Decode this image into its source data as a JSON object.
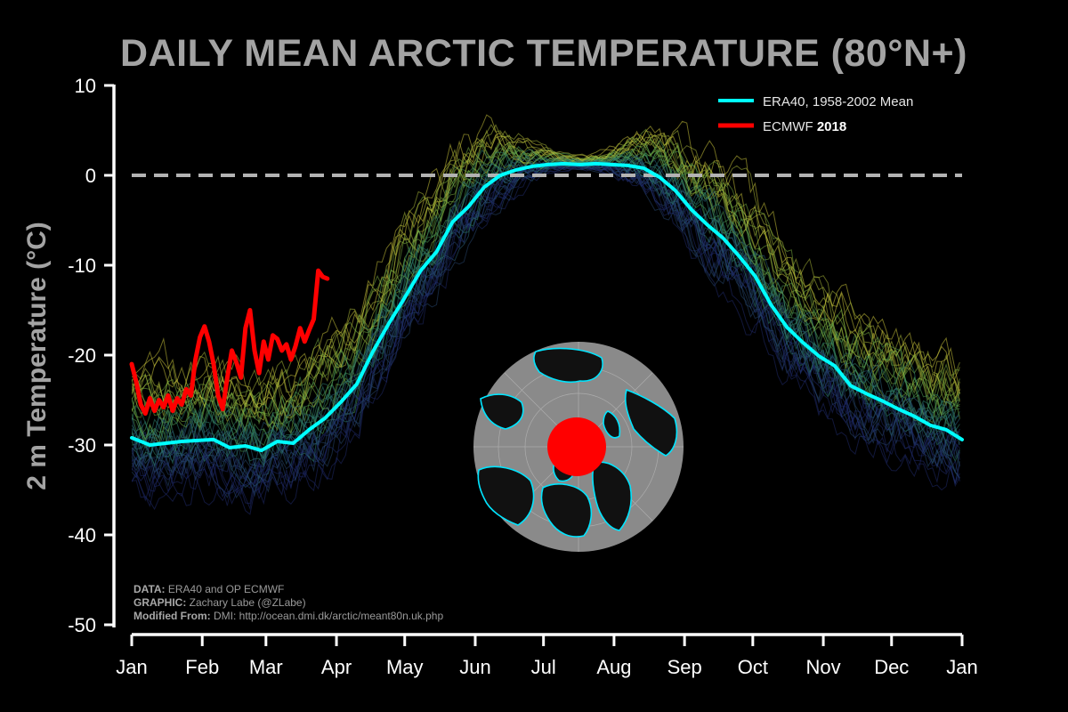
{
  "chart_data": {
    "type": "line",
    "title": "DAILY MEAN ARCTIC TEMPERATURE (80°N+)",
    "ylabel": "2 m Temperature (°C)",
    "xlabel": "",
    "ylim": [
      -50,
      10
    ],
    "yticks": [
      10,
      0,
      -10,
      -20,
      -30,
      -40,
      -50
    ],
    "months": [
      "Jan",
      "Feb",
      "Mar",
      "Apr",
      "May",
      "Jun",
      "Jul",
      "Aug",
      "Sep",
      "Oct",
      "Nov",
      "Dec",
      "Jan"
    ],
    "zero_line": 0,
    "series": [
      {
        "name": "ERA40, 1958-2002 Mean",
        "color": "#00ffff",
        "x": [
          0,
          8,
          15,
          22,
          29,
          36,
          43,
          50,
          57,
          64,
          71,
          78,
          85,
          92,
          99,
          106,
          113,
          120,
          127,
          134,
          141,
          148,
          155,
          162,
          169,
          176,
          183,
          190,
          197,
          204,
          211,
          218,
          225,
          232,
          239,
          246,
          253,
          260,
          267,
          274,
          281,
          288,
          295,
          302,
          309,
          316,
          323,
          330,
          337,
          344,
          351,
          358,
          365
        ],
        "values": [
          -29.2,
          -30.0,
          -29.8,
          -29.6,
          -29.5,
          -29.4,
          -30.3,
          -30.1,
          -30.6,
          -29.6,
          -29.8,
          -28.3,
          -27.0,
          -25.2,
          -23.2,
          -19.6,
          -16.5,
          -13.6,
          -10.6,
          -8.5,
          -5.2,
          -3.5,
          -1.3,
          0.0,
          0.6,
          1.0,
          1.2,
          1.3,
          1.2,
          1.3,
          1.2,
          1.1,
          0.8,
          -0.2,
          -1.7,
          -3.8,
          -5.5,
          -7.0,
          -9.0,
          -11.2,
          -14.4,
          -16.9,
          -18.6,
          -20.1,
          -21.2,
          -23.4,
          -24.3,
          -25.1,
          -26.0,
          -26.8,
          -27.8,
          -28.3,
          -29.4
        ]
      },
      {
        "name": "ECMWF 2018",
        "label_prefix": "ECMWF ",
        "label_bold": "2018",
        "color": "#ff0000",
        "x": [
          0,
          2,
          4,
          6,
          8,
          10,
          12,
          14,
          16,
          18,
          20,
          22,
          24,
          26,
          28,
          30,
          32,
          34,
          36,
          38,
          40,
          42,
          44,
          46,
          48,
          50,
          52,
          54,
          56,
          58,
          60,
          62,
          64,
          66,
          68,
          70,
          72,
          74,
          76,
          78,
          80,
          82,
          84,
          86
        ],
        "values": [
          -21.0,
          -23.0,
          -25.5,
          -26.5,
          -24.8,
          -26.2,
          -25.0,
          -25.8,
          -24.5,
          -26.2,
          -24.8,
          -25.5,
          -23.8,
          -24.5,
          -20.5,
          -18.0,
          -16.8,
          -18.5,
          -21.0,
          -24.5,
          -26.0,
          -22.5,
          -19.5,
          -20.8,
          -22.5,
          -17.0,
          -15.0,
          -19.5,
          -22.0,
          -18.5,
          -20.5,
          -17.8,
          -18.2,
          -19.5,
          -18.8,
          -20.5,
          -19.0,
          -17.0,
          -18.5,
          -17.2,
          -16.0,
          -10.6,
          -11.3,
          -11.5
        ]
      }
    ],
    "background_ensemble": {
      "description_count": 45,
      "colors": [
        "#1f2a6a",
        "#26456e",
        "#2a5f7a",
        "#2e7f6e",
        "#4d9a55",
        "#78ad3f",
        "#a7b638",
        "#c9c23a"
      ]
    }
  },
  "credits": {
    "data_label": "DATA:",
    "data_value": " ERA40 and OP ECMWF",
    "graphic_label": "GRAPHIC:",
    "graphic_value": " Zachary Labe (@ZLabe)",
    "modified_label": "Modified From:",
    "modified_value": " DMI: http://ocean.dmi.dk/arctic/meant80n.uk.php"
  }
}
